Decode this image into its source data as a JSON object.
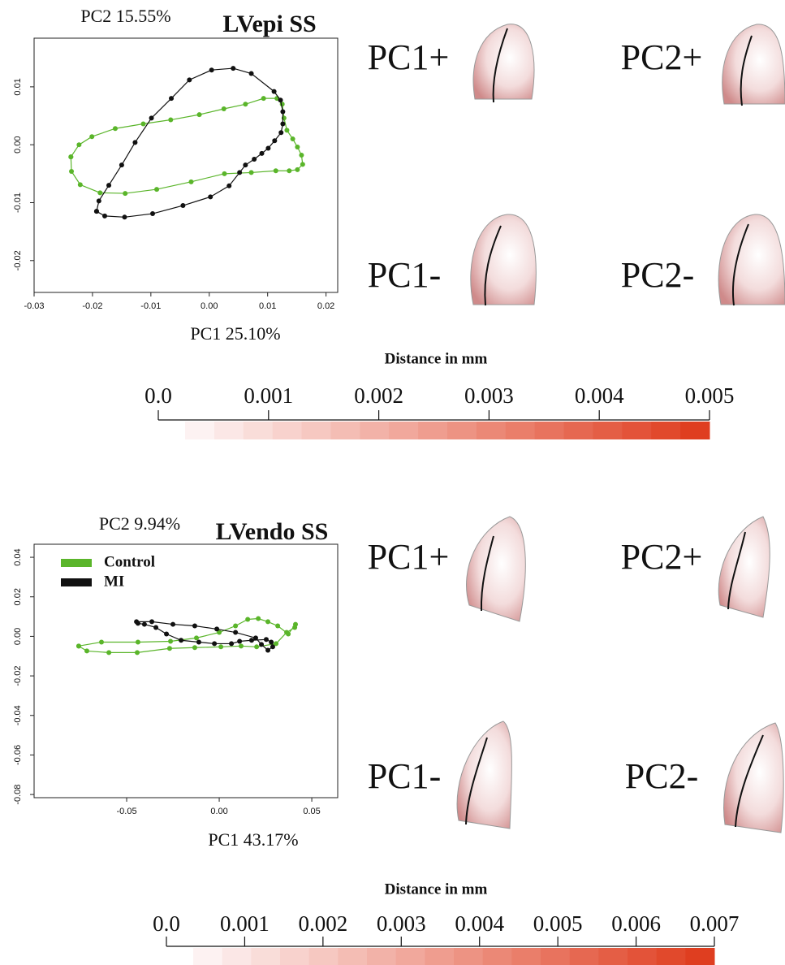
{
  "chart_data": [
    {
      "type": "line",
      "title": "LVepi SS",
      "x_label": "PC1 25.10%",
      "y_label": "PC2 15.55%",
      "xlim": [
        -0.03,
        0.022
      ],
      "ylim": [
        -0.0255,
        0.0184
      ],
      "xticks": [
        -0.03,
        -0.02,
        -0.01,
        {
          "value": 0,
          "label": "0.00"
        },
        0.01,
        0.02
      ],
      "yticks": [
        -0.02,
        -0.01,
        {
          "value": 0,
          "label": "0.00"
        },
        0.01
      ],
      "series": [
        {
          "color": "#5ab52a",
          "x": [
            -0.0237,
            -0.0236,
            -0.0221,
            -0.0187,
            -0.0144,
            -0.009,
            -0.0031,
            0.0026,
            0.0072,
            0.0114,
            0.0137,
            0.0151,
            0.016,
            0.0158,
            0.0151,
            0.0143,
            0.0133,
            0.0128,
            0.0125,
            0.0116,
            0.0093,
            0.0062,
            0.0025,
            -0.0017,
            -0.0066,
            -0.0113,
            -0.0161,
            -0.0201,
            -0.0223,
            -0.0237
          ],
          "values": [
            -0.0021,
            -0.0046,
            -0.0069,
            -0.0083,
            -0.0084,
            -0.0077,
            -0.0064,
            -0.005,
            -0.0048,
            -0.0045,
            -0.0045,
            -0.0043,
            -0.0034,
            -0.0018,
            -0.0004,
            0.001,
            0.0025,
            0.0046,
            0.007,
            0.008,
            0.008,
            0.007,
            0.0062,
            0.0052,
            0.0043,
            0.0036,
            0.0028,
            0.0014,
            0.0,
            -0.0021
          ]
        },
        {
          "color": "#111111",
          "x": [
            -0.0193,
            -0.0189,
            -0.0172,
            -0.015,
            -0.0127,
            -0.0099,
            -0.0065,
            -0.0034,
            0.0004,
            0.0041,
            0.0072,
            0.0111,
            0.0122,
            0.0126,
            0.0126,
            0.0123,
            0.0112,
            0.0101,
            0.009,
            0.0077,
            0.0062,
            0.0052,
            0.0034,
            0.0002,
            -0.0045,
            -0.0097,
            -0.0145,
            -0.0179,
            -0.0193
          ],
          "values": [
            -0.0115,
            -0.0097,
            -0.007,
            -0.0035,
            0.0004,
            0.0046,
            0.008,
            0.0112,
            0.0129,
            0.0132,
            0.0123,
            0.0092,
            0.0077,
            0.0057,
            0.0036,
            0.0021,
            0.0007,
            -0.0006,
            -0.0015,
            -0.0025,
            -0.0035,
            -0.0048,
            -0.0071,
            -0.009,
            -0.0105,
            -0.0119,
            -0.0125,
            -0.0123,
            -0.0115
          ]
        }
      ],
      "shape_labels": [
        "PC1+",
        "PC2+",
        "PC1-",
        "PC2-"
      ],
      "colorbar": {
        "title": "Distance in mm",
        "lim": [
          0,
          0.005
        ],
        "ticks": [
          {
            "value": 0,
            "label": "0.0"
          },
          0.001,
          0.002,
          0.003,
          0.004,
          0.005
        ]
      }
    },
    {
      "type": "line",
      "title": "LVendo SS",
      "x_label": "PC1 43.17%",
      "y_label": "PC2 9.94%",
      "xlim": [
        -0.1,
        0.064
      ],
      "ylim": [
        -0.0816,
        0.0466
      ],
      "xticks": [
        -0.05,
        {
          "value": 0,
          "label": "0.00"
        },
        0.05
      ],
      "yticks": [
        -0.08,
        -0.06,
        -0.04,
        -0.02,
        {
          "value": 0,
          "label": "0.00"
        },
        0.02,
        0.04
      ],
      "legend": "upper left",
      "series": [
        {
          "name": "Control",
          "color": "#5ab52a",
          "x": [
            -0.0759,
            -0.0715,
            -0.0596,
            -0.0443,
            -0.0268,
            -0.0132,
            0.0009,
            0.0118,
            0.0202,
            0.0307,
            0.0364,
            0.0408,
            0.0412,
            0.0373,
            0.0316,
            0.0263,
            0.0211,
            0.0154,
            0.0088,
            0.0,
            -0.0123,
            -0.0263,
            -0.0439,
            -0.0636,
            -0.0759
          ],
          "values": [
            -0.0049,
            -0.0074,
            -0.0082,
            -0.0082,
            -0.0061,
            -0.0057,
            -0.0053,
            -0.0049,
            -0.0053,
            -0.0037,
            0.002,
            0.0045,
            0.0061,
            0.0012,
            0.0053,
            0.0074,
            0.009,
            0.0086,
            0.0053,
            0.002,
            -0.0008,
            -0.0025,
            -0.0029,
            -0.0029,
            -0.0049
          ]
        },
        {
          "name": "MI",
          "color": "#111111",
          "x": [
            -0.0447,
            -0.0364,
            -0.025,
            -0.0132,
            -0.0013,
            0.0088,
            0.0197,
            0.0228,
            0.0263,
            0.0289,
            0.0281,
            0.0254,
            0.0175,
            0.011,
            0.0066,
            -0.0026,
            -0.011,
            -0.0206,
            -0.0285,
            -0.0342,
            -0.0404,
            -0.0439
          ],
          "values": [
            0.0074,
            0.0074,
            0.0061,
            0.0053,
            0.0037,
            0.002,
            -0.0008,
            -0.0041,
            -0.007,
            -0.0053,
            -0.0029,
            -0.0016,
            -0.002,
            -0.0025,
            -0.0037,
            -0.0037,
            -0.0029,
            -0.002,
            0.0012,
            0.0045,
            0.0061,
            0.0066
          ]
        }
      ],
      "shape_labels": [
        "PC1+",
        "PC2+",
        "PC1-",
        "PC2-"
      ],
      "colorbar": {
        "title": "Distance in mm",
        "lim": [
          0,
          0.007
        ],
        "ticks": [
          {
            "value": 0,
            "label": "0.0"
          },
          0.001,
          0.002,
          0.003,
          0.004,
          0.005,
          0.006,
          0.007
        ]
      }
    }
  ]
}
